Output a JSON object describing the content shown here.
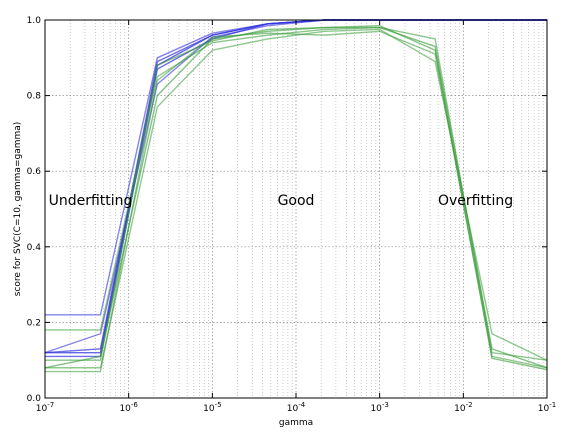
{
  "chart_data": {
    "type": "line",
    "xlabel": "gamma",
    "ylabel": "score for SVC(C=10, gamma=gamma)",
    "xscale": "log",
    "xlim": [
      1e-07,
      0.1
    ],
    "ylim": [
      0.0,
      1.0
    ],
    "grid": true,
    "x": [
      1e-07,
      4.6e-07,
      2.2e-06,
      1e-05,
      4.6e-05,
      0.00022,
      0.001,
      0.0046,
      0.022,
      0.1
    ],
    "xticks": [
      "10^-7",
      "10^-6",
      "10^-5",
      "10^-4",
      "10^-3",
      "10^-2",
      "10^-1"
    ],
    "yticks": [
      "0.0",
      "0.2",
      "0.4",
      "0.6",
      "0.8",
      "1.0"
    ],
    "annotations": [
      {
        "text": "Underfitting",
        "x": 3.5e-07,
        "y": 0.51
      },
      {
        "text": "Good",
        "x": 0.0001,
        "y": 0.51
      },
      {
        "text": "Overfitting",
        "x": 0.014,
        "y": 0.51
      }
    ],
    "series": [
      {
        "color": "#3333dd",
        "alpha": 0.75,
        "values": [
          0.12,
          0.12,
          0.88,
          0.96,
          0.99,
          1.0,
          1.0,
          1.0,
          1.0,
          1.0
        ]
      },
      {
        "color": "#3333dd",
        "alpha": 0.7,
        "values": [
          0.12,
          0.13,
          0.89,
          0.96,
          0.99,
          1.0,
          1.0,
          1.0,
          1.0,
          1.0
        ]
      },
      {
        "color": "#3333dd",
        "alpha": 0.6,
        "values": [
          0.22,
          0.22,
          0.9,
          0.965,
          0.99,
          1.0,
          1.0,
          1.0,
          1.0,
          1.0
        ]
      },
      {
        "color": "#3333dd",
        "alpha": 0.6,
        "values": [
          0.12,
          0.17,
          0.83,
          0.955,
          0.985,
          1.0,
          1.0,
          1.0,
          1.0,
          1.0
        ]
      },
      {
        "color": "#3333dd",
        "alpha": 0.7,
        "values": [
          0.11,
          0.11,
          0.87,
          0.95,
          0.99,
          1.0,
          1.0,
          1.0,
          1.0,
          1.0
        ]
      },
      {
        "color": "#339933",
        "alpha": 0.6,
        "values": [
          0.08,
          0.11,
          0.8,
          0.95,
          0.97,
          0.98,
          0.98,
          0.93,
          0.13,
          0.08
        ]
      },
      {
        "color": "#339933",
        "alpha": 0.55,
        "values": [
          0.08,
          0.08,
          0.77,
          0.92,
          0.95,
          0.97,
          0.975,
          0.89,
          0.17,
          0.1
        ]
      },
      {
        "color": "#339933",
        "alpha": 0.55,
        "values": [
          0.18,
          0.18,
          0.85,
          0.94,
          0.96,
          0.975,
          0.98,
          0.95,
          0.12,
          0.1
        ]
      },
      {
        "color": "#339933",
        "alpha": 0.6,
        "values": [
          0.1,
          0.1,
          0.88,
          0.945,
          0.975,
          0.98,
          0.985,
          0.92,
          0.105,
          0.075
        ]
      },
      {
        "color": "#339933",
        "alpha": 0.55,
        "values": [
          0.07,
          0.07,
          0.84,
          0.955,
          0.965,
          0.96,
          0.97,
          0.91,
          0.11,
          0.08
        ]
      }
    ]
  }
}
